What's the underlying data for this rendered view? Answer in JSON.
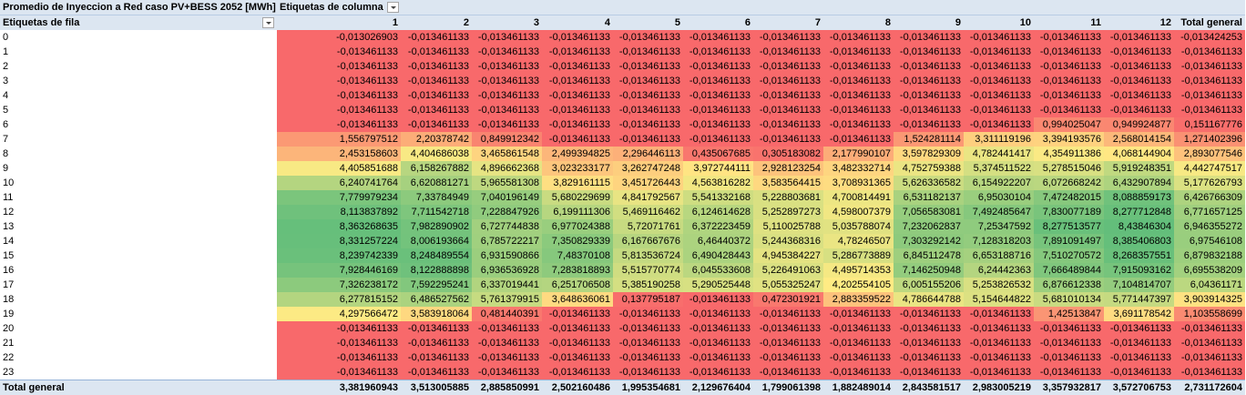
{
  "pivot": {
    "title": "Promedio de Inyeccion a Red caso PV+BESS 2052 [MWh]",
    "column_labels_caption": "Etiquetas de columna",
    "row_labels_caption": "Etiquetas de fila",
    "columns": [
      "1",
      "2",
      "3",
      "4",
      "5",
      "6",
      "7",
      "8",
      "9",
      "10",
      "11",
      "12",
      "Total general"
    ],
    "colors": {
      "high": "#63be7b",
      "mid": "#ffeb84",
      "low": "#f8696b",
      "header": "#dce6f1"
    },
    "rows": [
      {
        "label": "0",
        "values": [
          "-0,013026903",
          "-0,013461133",
          "-0,013461133",
          "-0,013461133",
          "-0,013461133",
          "-0,013461133",
          "-0,013461133",
          "-0,013461133",
          "-0,013461133",
          "-0,013461133",
          "-0,013461133",
          "-0,013461133",
          "-0,013424253"
        ]
      },
      {
        "label": "1",
        "values": [
          "-0,013461133",
          "-0,013461133",
          "-0,013461133",
          "-0,013461133",
          "-0,013461133",
          "-0,013461133",
          "-0,013461133",
          "-0,013461133",
          "-0,013461133",
          "-0,013461133",
          "-0,013461133",
          "-0,013461133",
          "-0,013461133"
        ]
      },
      {
        "label": "2",
        "values": [
          "-0,013461133",
          "-0,013461133",
          "-0,013461133",
          "-0,013461133",
          "-0,013461133",
          "-0,013461133",
          "-0,013461133",
          "-0,013461133",
          "-0,013461133",
          "-0,013461133",
          "-0,013461133",
          "-0,013461133",
          "-0,013461133"
        ]
      },
      {
        "label": "3",
        "values": [
          "-0,013461133",
          "-0,013461133",
          "-0,013461133",
          "-0,013461133",
          "-0,013461133",
          "-0,013461133",
          "-0,013461133",
          "-0,013461133",
          "-0,013461133",
          "-0,013461133",
          "-0,013461133",
          "-0,013461133",
          "-0,013461133"
        ]
      },
      {
        "label": "4",
        "values": [
          "-0,013461133",
          "-0,013461133",
          "-0,013461133",
          "-0,013461133",
          "-0,013461133",
          "-0,013461133",
          "-0,013461133",
          "-0,013461133",
          "-0,013461133",
          "-0,013461133",
          "-0,013461133",
          "-0,013461133",
          "-0,013461133"
        ]
      },
      {
        "label": "5",
        "values": [
          "-0,013461133",
          "-0,013461133",
          "-0,013461133",
          "-0,013461133",
          "-0,013461133",
          "-0,013461133",
          "-0,013461133",
          "-0,013461133",
          "-0,013461133",
          "-0,013461133",
          "-0,013461133",
          "-0,013461133",
          "-0,013461133"
        ]
      },
      {
        "label": "6",
        "values": [
          "-0,013461133",
          "-0,013461133",
          "-0,013461133",
          "-0,013461133",
          "-0,013461133",
          "-0,013461133",
          "-0,013461133",
          "-0,013461133",
          "-0,013461133",
          "-0,013461133",
          "0,994025047",
          "0,949924877",
          "0,151167776"
        ]
      },
      {
        "label": "7",
        "values": [
          "1,556797512",
          "2,20378742",
          "0,849912342",
          "-0,013461133",
          "-0,013461133",
          "-0,013461133",
          "-0,013461133",
          "-0,013461133",
          "1,524281114",
          "3,311119196",
          "3,394193576",
          "2,568014154",
          "1,271402396"
        ]
      },
      {
        "label": "8",
        "values": [
          "2,453158603",
          "4,404686038",
          "3,465861548",
          "2,499394825",
          "2,296446113",
          "0,435067685",
          "0,305183082",
          "2,177990107",
          "3,597829309",
          "4,782441417",
          "4,354911386",
          "4,068144904",
          "2,893077546"
        ]
      },
      {
        "label": "9",
        "values": [
          "4,405851688",
          "6,158267882",
          "4,896662368",
          "3,023233177",
          "3,262747248",
          "3,972744111",
          "2,928123254",
          "3,482332714",
          "4,752759388",
          "5,374511522",
          "5,278515046",
          "5,919248351",
          "4,442747517"
        ]
      },
      {
        "label": "10",
        "values": [
          "6,240741764",
          "6,620881271",
          "5,965581308",
          "3,829161115",
          "3,451726443",
          "4,563816282",
          "3,583564415",
          "3,708931365",
          "5,626336582",
          "6,154922207",
          "6,072668242",
          "6,432907894",
          "5,177626793"
        ]
      },
      {
        "label": "11",
        "values": [
          "7,779979234",
          "7,33784949",
          "7,040196149",
          "5,680229699",
          "4,841792567",
          "5,541332168",
          "5,228803681",
          "4,700814491",
          "6,531182137",
          "6,95030104",
          "7,472482015",
          "8,088859173",
          "6,426766309"
        ]
      },
      {
        "label": "12",
        "values": [
          "8,113837892",
          "7,711542718",
          "7,228847926",
          "6,199111306",
          "5,469116462",
          "6,124614628",
          "5,252897273",
          "4,598007379",
          "7,056583081",
          "7,492485647",
          "7,830077189",
          "8,277712848",
          "6,771657125"
        ]
      },
      {
        "label": "13",
        "values": [
          "8,363268635",
          "7,982890902",
          "6,727744838",
          "6,977024388",
          "5,72071761",
          "6,372223459",
          "5,110025788",
          "5,035788074",
          "7,232062837",
          "7,25347592",
          "8,277513577",
          "8,43846304",
          "6,946355272"
        ]
      },
      {
        "label": "14",
        "values": [
          "8,331257224",
          "8,006193664",
          "6,785722217",
          "7,350829339",
          "6,167667676",
          "6,46440372",
          "5,244368316",
          "4,78246507",
          "7,303292142",
          "7,128318203",
          "7,891091497",
          "8,385406803",
          "6,97546108"
        ]
      },
      {
        "label": "15",
        "values": [
          "8,239742339",
          "8,248489554",
          "6,931590866",
          "7,48370108",
          "5,813536724",
          "6,490428443",
          "4,945384227",
          "5,286773889",
          "6,845112478",
          "6,653188716",
          "7,510270572",
          "8,268357551",
          "6,879832188"
        ]
      },
      {
        "label": "16",
        "values": [
          "7,928446169",
          "8,122888898",
          "6,936536928",
          "7,283818893",
          "5,515770774",
          "6,045533608",
          "5,226491063",
          "4,495714353",
          "7,146250948",
          "6,24442363",
          "7,666489844",
          "7,915093162",
          "6,695538209"
        ]
      },
      {
        "label": "17",
        "values": [
          "7,326238172",
          "7,592295241",
          "6,337019441",
          "6,251706508",
          "5,385190258",
          "5,290525448",
          "5,055325247",
          "4,202554105",
          "6,005155206",
          "5,253826532",
          "6,876612338",
          "7,104814707",
          "6,04361171"
        ]
      },
      {
        "label": "18",
        "values": [
          "6,277815152",
          "6,486527562",
          "5,761379915",
          "3,648636061",
          "0,137795187",
          "-0,013461133",
          "0,472301921",
          "2,883359522",
          "4,786644788",
          "5,154644822",
          "5,681010134",
          "5,771447397",
          "3,903914325"
        ]
      },
      {
        "label": "19",
        "values": [
          "4,297566472",
          "3,583918064",
          "0,481440391",
          "-0,013461133",
          "-0,013461133",
          "-0,013461133",
          "-0,013461133",
          "-0,013461133",
          "-0,013461133",
          "-0,013461133",
          "1,42513847",
          "3,691178542",
          "1,103558699"
        ]
      },
      {
        "label": "20",
        "values": [
          "-0,013461133",
          "-0,013461133",
          "-0,013461133",
          "-0,013461133",
          "-0,013461133",
          "-0,013461133",
          "-0,013461133",
          "-0,013461133",
          "-0,013461133",
          "-0,013461133",
          "-0,013461133",
          "-0,013461133",
          "-0,013461133"
        ]
      },
      {
        "label": "21",
        "values": [
          "-0,013461133",
          "-0,013461133",
          "-0,013461133",
          "-0,013461133",
          "-0,013461133",
          "-0,013461133",
          "-0,013461133",
          "-0,013461133",
          "-0,013461133",
          "-0,013461133",
          "-0,013461133",
          "-0,013461133",
          "-0,013461133"
        ]
      },
      {
        "label": "22",
        "values": [
          "-0,013461133",
          "-0,013461133",
          "-0,013461133",
          "-0,013461133",
          "-0,013461133",
          "-0,013461133",
          "-0,013461133",
          "-0,013461133",
          "-0,013461133",
          "-0,013461133",
          "-0,013461133",
          "-0,013461133",
          "-0,013461133"
        ]
      },
      {
        "label": "23",
        "values": [
          "-0,013461133",
          "-0,013461133",
          "-0,013461133",
          "-0,013461133",
          "-0,013461133",
          "-0,013461133",
          "-0,013461133",
          "-0,013461133",
          "-0,013461133",
          "-0,013461133",
          "-0,013461133",
          "-0,013461133",
          "-0,013461133"
        ]
      }
    ],
    "total": {
      "label": "Total general",
      "values": [
        "3,381960943",
        "3,513005885",
        "2,885850991",
        "2,502160486",
        "1,995354681",
        "2,129676404",
        "1,799061398",
        "1,882489014",
        "2,843581517",
        "2,983005219",
        "3,357932817",
        "3,572706753",
        "2,731172604"
      ]
    }
  }
}
